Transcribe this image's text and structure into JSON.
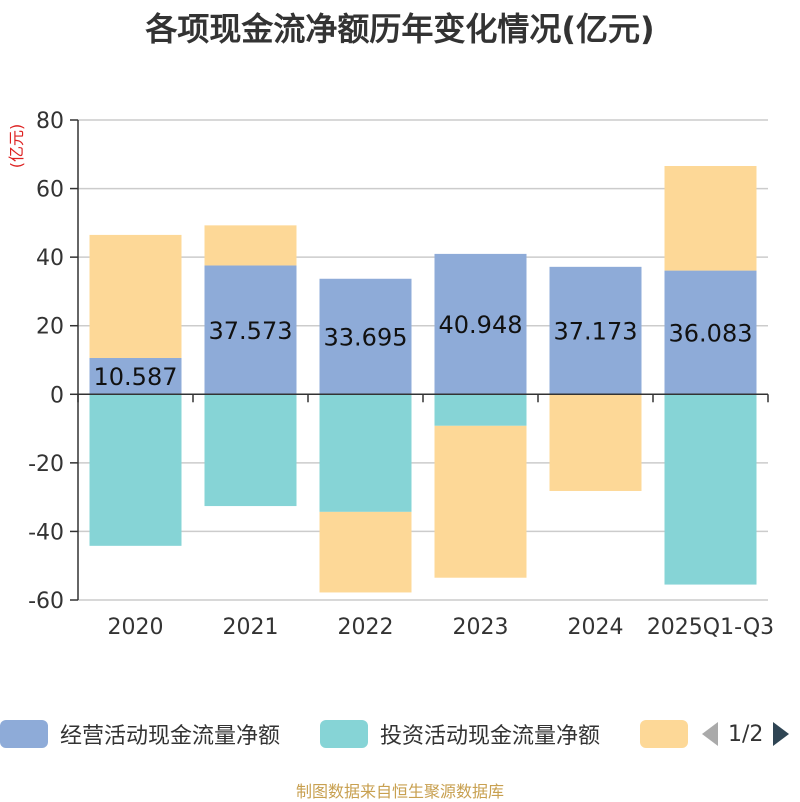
{
  "chart_data": {
    "type": "bar",
    "title": "各项现金流净额历年变化情况(亿元)",
    "ylabel": "(亿元)",
    "categories": [
      "2020",
      "2021",
      "2022",
      "2023",
      "2024",
      "2025Q1-Q3"
    ],
    "ylim": [
      -60,
      80
    ],
    "yticks": [
      80,
      60,
      40,
      20,
      0,
      -20,
      -40,
      -60
    ],
    "stacked": true,
    "grid": true,
    "series": [
      {
        "name": "经营活动现金流量净额",
        "color": "#8eabd8",
        "values": [
          10.587,
          37.573,
          33.695,
          40.948,
          37.173,
          36.083
        ],
        "labels": [
          "10.587",
          "37.573",
          "33.695",
          "40.948",
          "37.173",
          "36.083"
        ]
      },
      {
        "name": "投资活动现金流量净额",
        "color": "#86d4d6",
        "values": [
          -44.2,
          -32.6,
          -34.3,
          -9.2,
          0,
          -55.5
        ]
      },
      {
        "name": "",
        "color": "#fdd897",
        "values": [
          35.9,
          11.7,
          -23.5,
          -44.3,
          -28.2,
          30.5
        ]
      }
    ]
  },
  "legend": {
    "items": [
      {
        "label": "经营活动现金流量净额",
        "color": "#8eabd8"
      },
      {
        "label": "投资活动现金流量净额",
        "color": "#86d4d6"
      },
      {
        "label": "",
        "color": "#fdd897"
      }
    ],
    "pager_text": "1/2"
  },
  "footer": {
    "source": "制图数据来自恒生聚源数据库"
  }
}
